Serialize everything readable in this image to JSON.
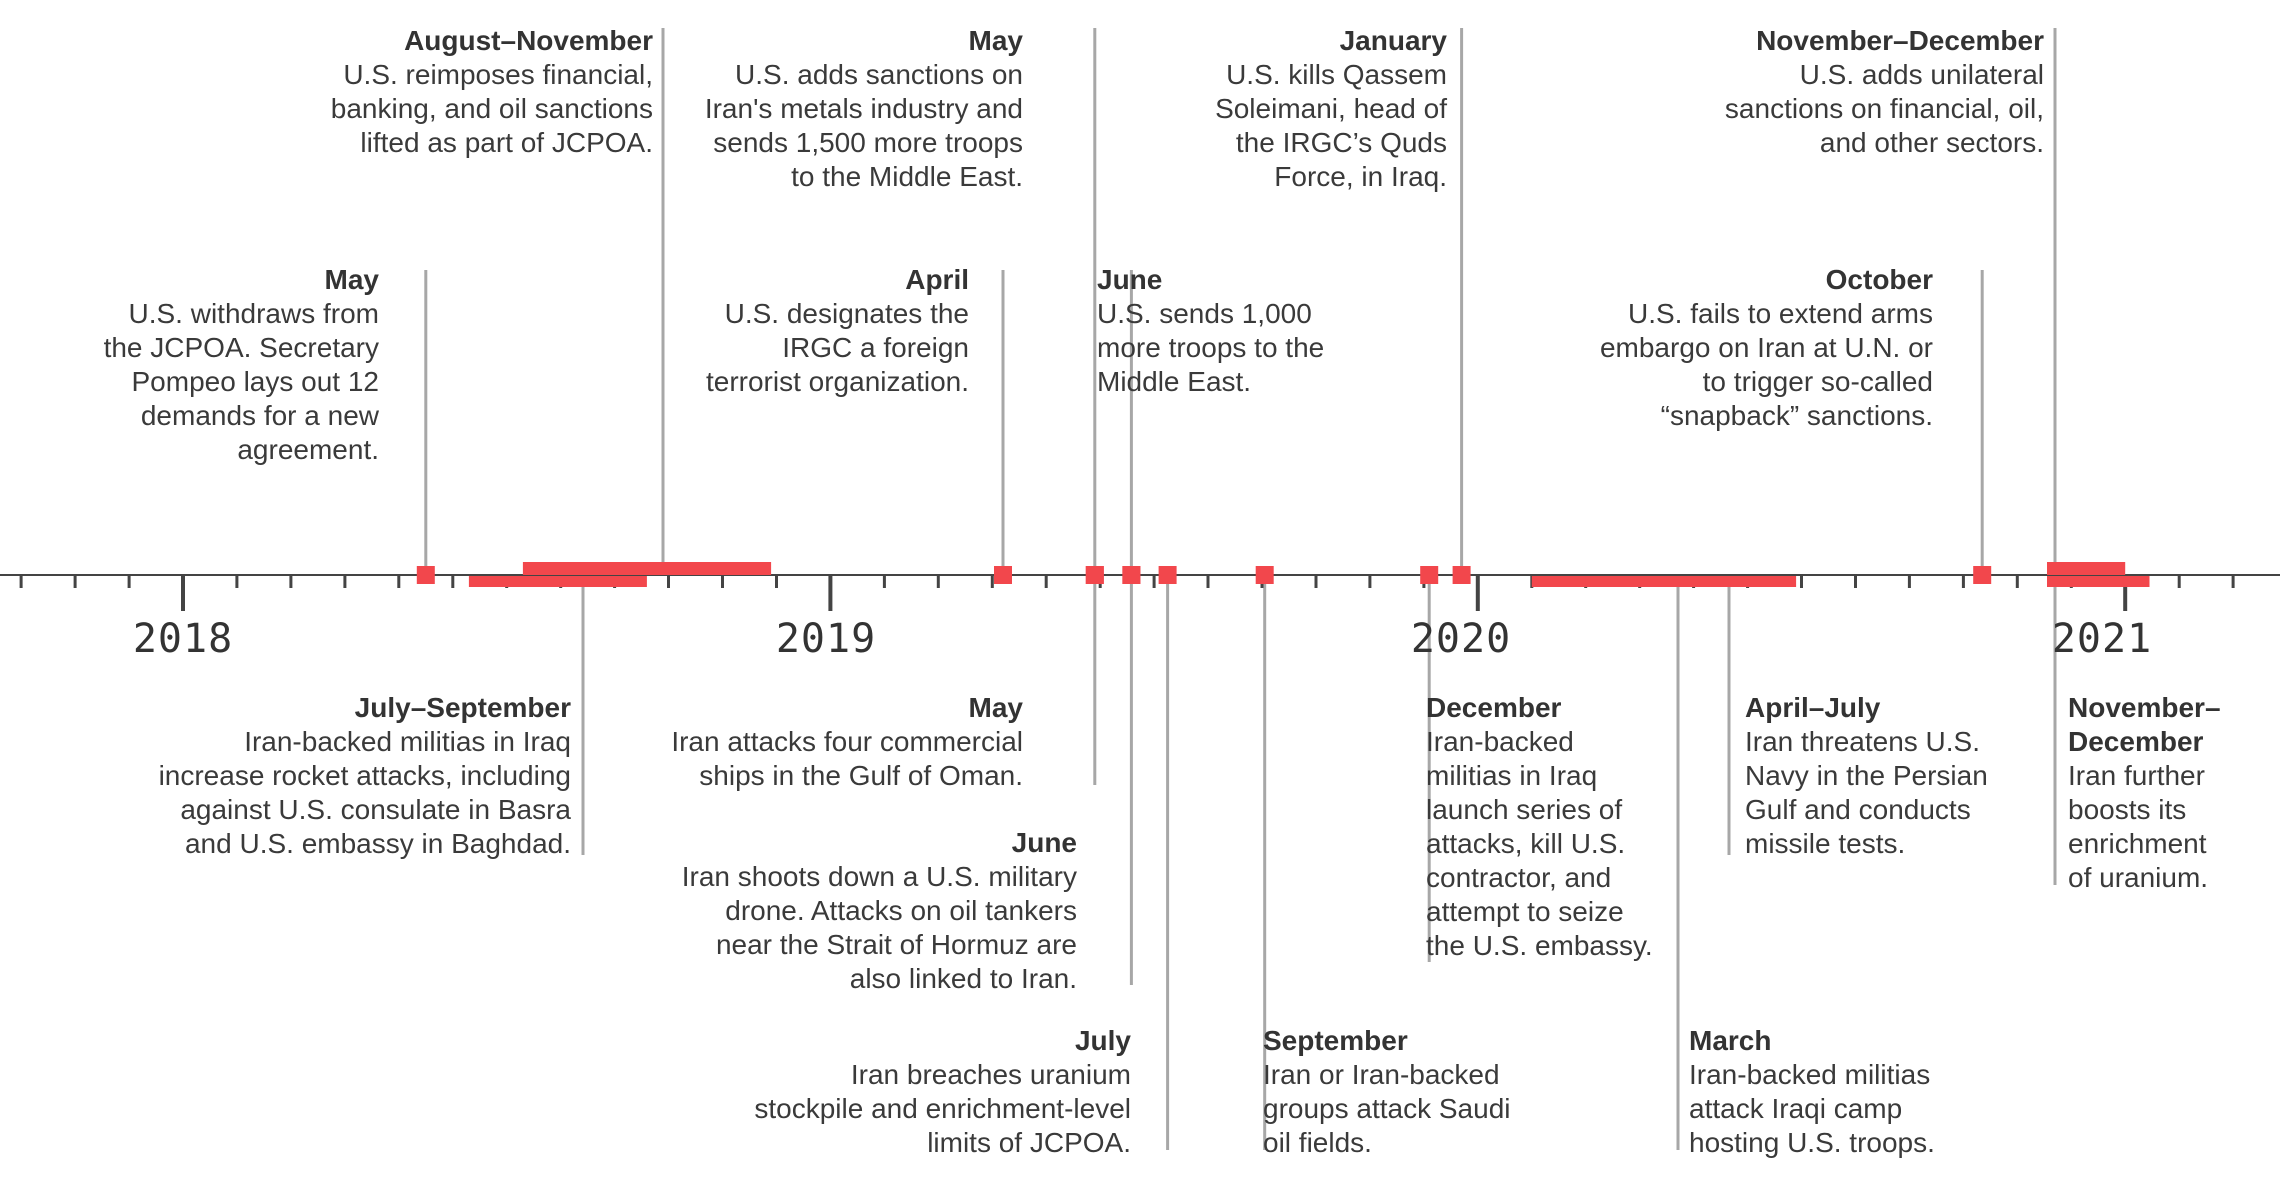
{
  "axis": {
    "start_year": 2018,
    "end_year": 2021,
    "year_labels": [
      "2018",
      "2019",
      "2020",
      "2021"
    ]
  },
  "colors": {
    "marker": "#f2474c",
    "leader": "#a7a7a7",
    "axis": "#444444",
    "text": "#3a3a3a"
  },
  "events": [
    {
      "id": "us-withdraws-jcpoa",
      "actor": "U.S.",
      "date": "May",
      "start": "2018-05",
      "end": null,
      "desc": "U.S. withdraws from\nthe JCPOA. Secretary\nPompeo lays out 12\ndemands for a new\nagreement."
    },
    {
      "id": "us-reimposes-sanctions",
      "actor": "U.S.",
      "date": "August–November",
      "start": "2018-08",
      "end": "2018-11",
      "desc": "U.S. reimposes financial,\nbanking, and oil sanctions\nlifted as part of JCPOA."
    },
    {
      "id": "iran-rocket-attacks",
      "actor": "Iran",
      "date": "July–September",
      "start": "2018-07",
      "end": "2018-09",
      "desc": "Iran-backed militias in Iraq\nincrease rocket attacks, including\nagainst U.S. consulate in Basra\nand U.S. embassy in Baghdad."
    },
    {
      "id": "us-designates-irgc",
      "actor": "U.S.",
      "date": "April",
      "start": "2019-04",
      "end": null,
      "desc": "U.S. designates the\nIRGC a foreign\nterrorist organization."
    },
    {
      "id": "us-metals-sanctions",
      "actor": "U.S.",
      "date": "May",
      "start": "2019-05",
      "end": null,
      "desc": "U.S. adds sanctions on\nIran's metals industry and\nsends 1,500 more troops\nto the Middle East."
    },
    {
      "id": "iran-attacks-ships",
      "actor": "Iran",
      "date": "May",
      "start": "2019-05",
      "end": null,
      "desc": "Iran attacks four commercial\nships in the Gulf of Oman."
    },
    {
      "id": "us-sends-troops",
      "actor": "U.S.",
      "date": "June",
      "start": "2019-06",
      "end": null,
      "desc": "U.S. sends 1,000\nmore troops to the\nMiddle East."
    },
    {
      "id": "iran-shoots-drone",
      "actor": "Iran",
      "date": "June",
      "start": "2019-06",
      "end": null,
      "desc": "Iran shoots down a U.S. military\ndrone. Attacks on oil tankers\nnear the Strait of Hormuz are\nalso linked to Iran."
    },
    {
      "id": "iran-breaches-limits",
      "actor": "Iran",
      "date": "July",
      "start": "2019-07",
      "end": null,
      "desc": "Iran breaches uranium\nstockpile and enrichment-level\nlimits of JCPOA."
    },
    {
      "id": "saudi-oil-attack",
      "actor": "Iran",
      "date": "September",
      "start": "2019-09",
      "end": null,
      "desc": "Iran or Iran-backed\ngroups attack Saudi\noil fields."
    },
    {
      "id": "iran-militia-embassy",
      "actor": "Iran",
      "date": "December",
      "start": "2019-12",
      "end": null,
      "desc": "Iran-backed\nmilitias in Iraq\nlaunch series of\nattacks, kill U.S.\ncontractor, and\nattempt to seize\nthe U.S. embassy."
    },
    {
      "id": "us-kills-soleimani",
      "actor": "U.S.",
      "date": "January",
      "start": "2020-01",
      "end": null,
      "desc": "U.S. kills Qassem\nSoleimani, head of\nthe IRGC’s Quds\nForce, in Iraq."
    },
    {
      "id": "iraqi-camp-attack",
      "actor": "Iran",
      "date": "March",
      "start": "2020-03",
      "end": null,
      "desc": "Iran-backed militias\nattack Iraqi camp\nhosting U.S. troops."
    },
    {
      "id": "iran-threatens-navy",
      "actor": "Iran",
      "date": "April–July",
      "start": "2020-04",
      "end": "2020-07",
      "desc": "Iran threatens U.S.\nNavy in the Persian\nGulf and conducts\nmissile tests."
    },
    {
      "id": "us-fails-arms-embargo",
      "actor": "U.S.",
      "date": "October",
      "start": "2020-10",
      "end": null,
      "desc": "U.S. fails to extend arms\nembargo on Iran at U.N. or\nto trigger so-called\n“snapback” sanctions."
    },
    {
      "id": "us-unilateral-sanctions",
      "actor": "U.S.",
      "date": "November–December",
      "start": "2020-11",
      "end": "2020-12",
      "desc": "U.S. adds unilateral\nsanctions on financial, oil,\nand other sectors."
    },
    {
      "id": "iran-boosts-enrichment",
      "actor": "Iran",
      "date": "November–\nDecember",
      "start": "2020-11",
      "end": "2020-12",
      "desc": "Iran further\nboosts its\nenrichment\nof uranium."
    }
  ]
}
